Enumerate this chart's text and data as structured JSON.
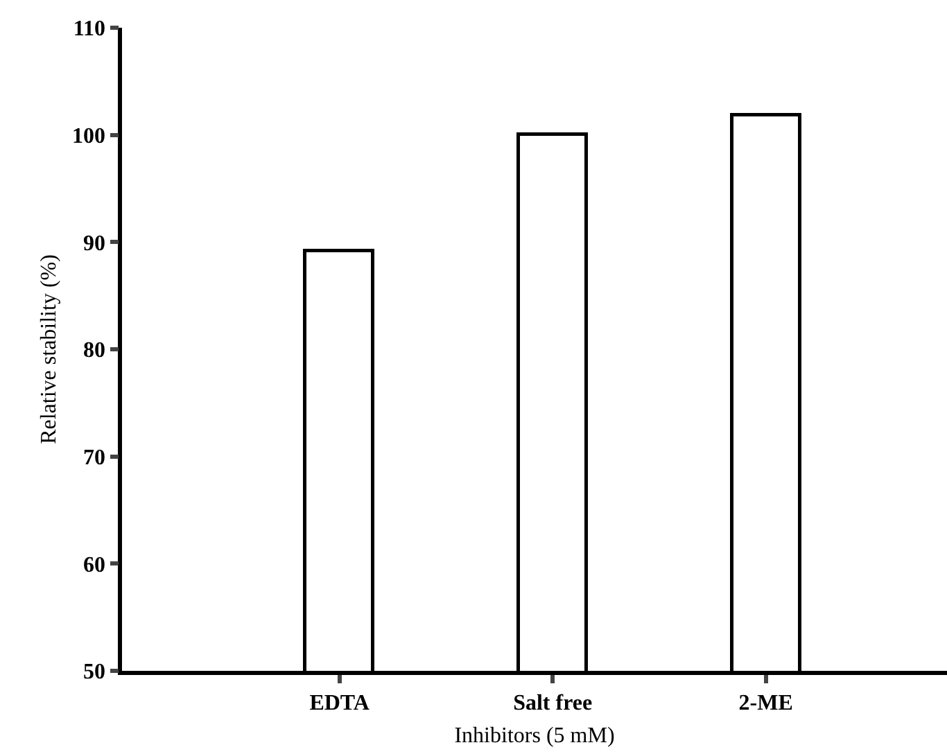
{
  "chart_data": {
    "type": "bar",
    "xlabel": "Inhibitors (5 mM)",
    "ylabel": "Relative stability (%)",
    "categories": [
      "EDTA",
      "Salt free",
      "2-ME"
    ],
    "values": [
      89.2,
      100.1,
      101.9
    ],
    "color": "#ffffff",
    "ylim": [
      50,
      110
    ],
    "yticks": [
      50,
      60,
      70,
      80,
      90,
      100,
      110
    ],
    "grid": false
  }
}
